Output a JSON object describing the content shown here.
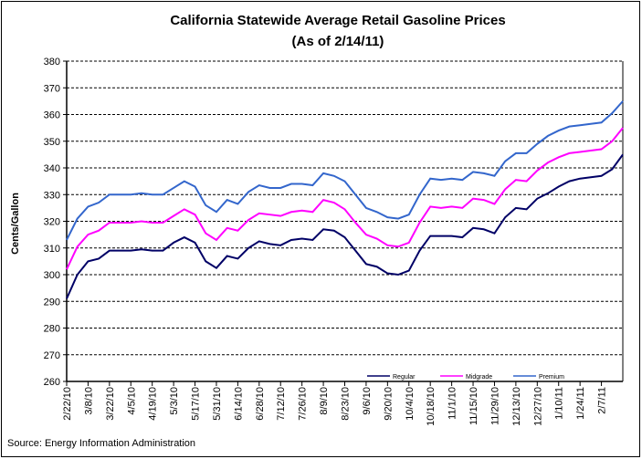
{
  "chart_data": {
    "type": "line",
    "title": "California Statewide Average Retail Gasoline Prices",
    "subtitle": "(As of 2/14/11)",
    "xlabel": "",
    "ylabel": "Cents/Gallon",
    "ylim": [
      260,
      380
    ],
    "yticks": [
      260,
      270,
      280,
      290,
      300,
      310,
      320,
      330,
      340,
      350,
      360,
      370,
      380
    ],
    "grid": true,
    "legend_placement": "bottom-right",
    "xtick_labels": [
      "2/22/10",
      "3/8/10",
      "3/22/10",
      "4/5/10",
      "4/19/10",
      "5/3/10",
      "5/17/10",
      "5/31/10",
      "6/14/10",
      "6/28/10",
      "7/12/10",
      "7/26/10",
      "8/9/10",
      "8/23/10",
      "9/6/10",
      "9/20/10",
      "10/4/10",
      "10/18/10",
      "11/1/10",
      "11/15/10",
      "11/29/10",
      "12/13/10",
      "12/27/10",
      "1/10/11",
      "1/24/11",
      "2/7/11"
    ],
    "series": [
      {
        "name": "Regular",
        "color": "#000066",
        "values": [
          291,
          300,
          305,
          306,
          309,
          309,
          309,
          309.5,
          309,
          309,
          312,
          314,
          312,
          305,
          302.5,
          307,
          306,
          310,
          312.5,
          311.5,
          311,
          313,
          313.5,
          313,
          317,
          316.5,
          314,
          309,
          304,
          303,
          300.5,
          300,
          301.5,
          309,
          314.5,
          314.5,
          314.5,
          314,
          317.5,
          317,
          315.5,
          321.5,
          325,
          324.5,
          328.5,
          330.5,
          333,
          335,
          336,
          336.5,
          337,
          339.5,
          345
        ]
      },
      {
        "name": "Midgrade",
        "color": "#ff00ff",
        "values": [
          302,
          310.5,
          315,
          316.5,
          319.5,
          319.5,
          319.5,
          320,
          319.5,
          319.5,
          322,
          324.5,
          322.5,
          315.5,
          313,
          317.5,
          316.5,
          320.5,
          323,
          322.5,
          322,
          323.5,
          324,
          323.5,
          328,
          327,
          324.5,
          319.5,
          315,
          313.5,
          311,
          310.5,
          312,
          319.5,
          325.5,
          325,
          325.5,
          325,
          328.5,
          328,
          326.5,
          332,
          335.5,
          335,
          339,
          342,
          344,
          345.5,
          346,
          346.5,
          347,
          350,
          355
        ]
      },
      {
        "name": "Premium",
        "color": "#3366cc",
        "values": [
          313,
          321,
          325.5,
          327,
          330,
          330,
          330,
          330.5,
          330,
          330,
          332.5,
          335,
          333,
          326,
          323.5,
          328,
          326.5,
          331,
          333.5,
          332.5,
          332.5,
          334,
          334,
          333.5,
          338,
          337,
          335,
          330,
          325,
          323.5,
          321.5,
          321,
          322.5,
          330,
          336,
          335.5,
          336,
          335.5,
          338.5,
          338,
          337,
          342.5,
          345.5,
          345.5,
          349,
          352,
          354,
          355.5,
          356,
          356.5,
          357,
          360.5,
          365
        ]
      }
    ]
  },
  "source": "Source: Energy Information Administration"
}
